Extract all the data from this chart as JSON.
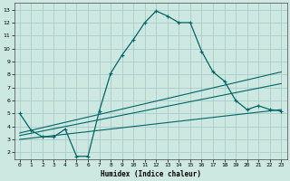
{
  "xlabel": "Humidex (Indice chaleur)",
  "bg_color": "#cce8e0",
  "grid_color": "#aacccc",
  "line_color": "#006666",
  "xlim": [
    -0.5,
    23.5
  ],
  "ylim": [
    1.5,
    13.5
  ],
  "xticks": [
    0,
    1,
    2,
    3,
    4,
    5,
    6,
    7,
    8,
    9,
    10,
    11,
    12,
    13,
    14,
    15,
    16,
    17,
    18,
    19,
    20,
    21,
    22,
    23
  ],
  "yticks": [
    2,
    3,
    4,
    5,
    6,
    7,
    8,
    9,
    10,
    11,
    12,
    13
  ],
  "curve1_x": [
    0,
    1,
    2,
    3,
    4,
    5,
    6,
    7,
    8,
    9,
    10,
    11,
    12,
    13,
    14,
    15,
    16,
    17,
    18,
    19,
    20,
    21,
    22,
    23
  ],
  "curve1_y": [
    5.0,
    3.7,
    3.2,
    3.2,
    3.8,
    1.7,
    1.7,
    5.2,
    8.1,
    9.5,
    10.7,
    12.0,
    12.9,
    12.5,
    12.0,
    12.0,
    9.8,
    8.2,
    7.5,
    6.0,
    5.3,
    5.6,
    5.3,
    5.2
  ],
  "line2_x": [
    0,
    23
  ],
  "line2_y": [
    3.5,
    8.2
  ],
  "line3_x": [
    0,
    23
  ],
  "line3_y": [
    3.3,
    7.3
  ],
  "line4_x": [
    0,
    23
  ],
  "line4_y": [
    3.0,
    5.3
  ],
  "marker": "+"
}
